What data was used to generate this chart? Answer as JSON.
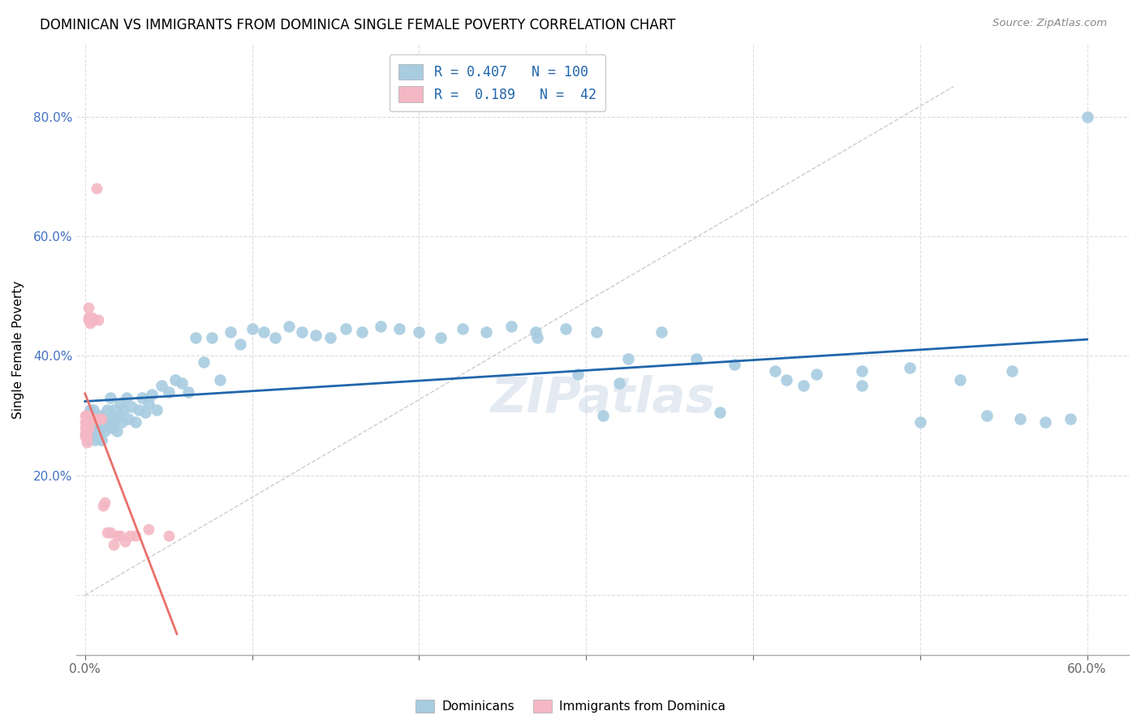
{
  "title": "DOMINICAN VS IMMIGRANTS FROM DOMINICA SINGLE FEMALE POVERTY CORRELATION CHART",
  "source": "Source: ZipAtlas.com",
  "ylabel": "Single Female Poverty",
  "color_dominicans": "#a8cce0",
  "color_immigrants": "#f4b8c4",
  "color_line_dominicans": "#2166ac",
  "color_line_immigrants": "#e8706a",
  "watermark": "ZIPatlas",
  "xlim": [
    -0.005,
    0.625
  ],
  "ylim": [
    -0.1,
    0.92
  ],
  "yticks": [
    0.0,
    0.2,
    0.4,
    0.6,
    0.8
  ],
  "ytick_labels": [
    "",
    "20.0%",
    "40.0%",
    "60.0%",
    "80.0%"
  ],
  "xticks": [
    0.0,
    0.1,
    0.2,
    0.3,
    0.4,
    0.5,
    0.6
  ],
  "xtick_labels": [
    "0.0%",
    "",
    "",
    "",
    "",
    "",
    "60.0%"
  ],
  "dom_x": [
    0.001,
    0.001,
    0.002,
    0.002,
    0.003,
    0.003,
    0.003,
    0.004,
    0.004,
    0.005,
    0.005,
    0.005,
    0.006,
    0.006,
    0.007,
    0.007,
    0.008,
    0.008,
    0.009,
    0.01,
    0.01,
    0.01,
    0.011,
    0.012,
    0.013,
    0.014,
    0.015,
    0.015,
    0.016,
    0.017,
    0.018,
    0.019,
    0.02,
    0.021,
    0.022,
    0.023,
    0.025,
    0.026,
    0.028,
    0.03,
    0.032,
    0.034,
    0.036,
    0.038,
    0.04,
    0.043,
    0.046,
    0.05,
    0.054,
    0.058,
    0.062,
    0.066,
    0.071,
    0.076,
    0.081,
    0.087,
    0.093,
    0.1,
    0.107,
    0.114,
    0.122,
    0.13,
    0.138,
    0.147,
    0.156,
    0.166,
    0.177,
    0.188,
    0.2,
    0.213,
    0.226,
    0.24,
    0.255,
    0.271,
    0.288,
    0.306,
    0.325,
    0.345,
    0.366,
    0.389,
    0.413,
    0.438,
    0.465,
    0.494,
    0.524,
    0.555,
    0.295,
    0.42,
    0.465,
    0.32,
    0.38,
    0.43,
    0.5,
    0.54,
    0.56,
    0.575,
    0.59,
    0.31,
    0.27,
    0.6
  ],
  "dom_y": [
    0.29,
    0.27,
    0.3,
    0.26,
    0.28,
    0.31,
    0.27,
    0.295,
    0.265,
    0.31,
    0.275,
    0.295,
    0.26,
    0.29,
    0.28,
    0.3,
    0.265,
    0.285,
    0.295,
    0.28,
    0.26,
    0.3,
    0.29,
    0.275,
    0.31,
    0.285,
    0.295,
    0.33,
    0.28,
    0.31,
    0.295,
    0.275,
    0.3,
    0.32,
    0.29,
    0.31,
    0.33,
    0.295,
    0.315,
    0.29,
    0.31,
    0.33,
    0.305,
    0.32,
    0.335,
    0.31,
    0.35,
    0.34,
    0.36,
    0.355,
    0.34,
    0.43,
    0.39,
    0.43,
    0.36,
    0.44,
    0.42,
    0.445,
    0.44,
    0.43,
    0.45,
    0.44,
    0.435,
    0.43,
    0.445,
    0.44,
    0.45,
    0.445,
    0.44,
    0.43,
    0.445,
    0.44,
    0.45,
    0.43,
    0.445,
    0.44,
    0.395,
    0.44,
    0.395,
    0.385,
    0.375,
    0.37,
    0.375,
    0.38,
    0.36,
    0.375,
    0.37,
    0.36,
    0.35,
    0.355,
    0.305,
    0.35,
    0.29,
    0.3,
    0.295,
    0.29,
    0.295,
    0.3,
    0.44,
    0.8
  ],
  "imm_x": [
    0.0,
    0.0,
    0.0,
    0.0,
    0.0,
    0.001,
    0.001,
    0.001,
    0.001,
    0.001,
    0.001,
    0.001,
    0.001,
    0.002,
    0.002,
    0.002,
    0.002,
    0.003,
    0.003,
    0.003,
    0.004,
    0.004,
    0.004,
    0.005,
    0.005,
    0.006,
    0.007,
    0.008,
    0.009,
    0.01,
    0.011,
    0.012,
    0.013,
    0.015,
    0.017,
    0.019,
    0.021,
    0.024,
    0.027,
    0.03,
    0.038,
    0.05
  ],
  "imm_y": [
    0.28,
    0.27,
    0.29,
    0.3,
    0.265,
    0.3,
    0.275,
    0.285,
    0.265,
    0.255,
    0.28,
    0.29,
    0.275,
    0.28,
    0.46,
    0.48,
    0.465,
    0.455,
    0.295,
    0.295,
    0.295,
    0.465,
    0.295,
    0.46,
    0.295,
    0.295,
    0.68,
    0.46,
    0.295,
    0.295,
    0.15,
    0.155,
    0.105,
    0.105,
    0.085,
    0.1,
    0.1,
    0.09,
    0.1,
    0.1,
    0.11,
    0.1
  ],
  "legend_line1": "R = 0.407   N = 100",
  "legend_line2": "R =  0.189   N =  42"
}
